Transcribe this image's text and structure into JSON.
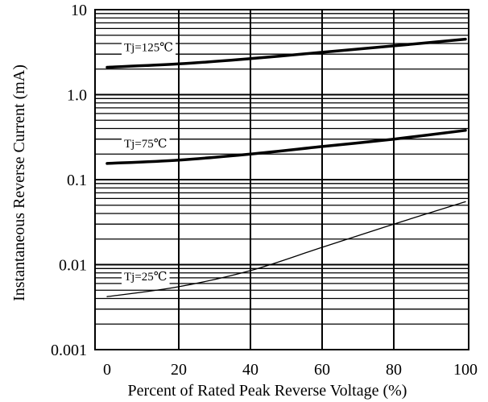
{
  "chart_data": {
    "type": "line",
    "title": "",
    "xlabel": "Percent of Rated Peak Reverse Voltage (%)",
    "ylabel": "Instantaneous Reverse Current (mA)",
    "xlim": [
      0,
      100
    ],
    "ylim": [
      0.001,
      10
    ],
    "yscale": "log",
    "grid": true,
    "x_ticks": [
      0,
      20,
      40,
      60,
      80,
      100
    ],
    "x_tick_labels": [
      "0",
      "20",
      "40",
      "60",
      "80",
      "100"
    ],
    "y_ticks": [
      0.001,
      0.01,
      0.1,
      1,
      10
    ],
    "y_tick_labels": [
      "0.001",
      "0.01",
      "0.1",
      "1.0",
      "10"
    ],
    "series": [
      {
        "name": "Tj=125℃",
        "x": [
          0,
          20,
          40,
          60,
          80,
          100
        ],
        "values": [
          2.1,
          2.3,
          2.65,
          3.15,
          3.75,
          4.5
        ]
      },
      {
        "name": "Tj=75℃",
        "x": [
          0,
          20,
          40,
          60,
          80,
          100
        ],
        "values": [
          0.155,
          0.17,
          0.2,
          0.245,
          0.3,
          0.38
        ]
      },
      {
        "name": "Tj=25℃",
        "x": [
          0,
          20,
          40,
          60,
          80,
          100
        ],
        "values": [
          0.0042,
          0.0055,
          0.0085,
          0.016,
          0.03,
          0.055
        ]
      }
    ]
  }
}
